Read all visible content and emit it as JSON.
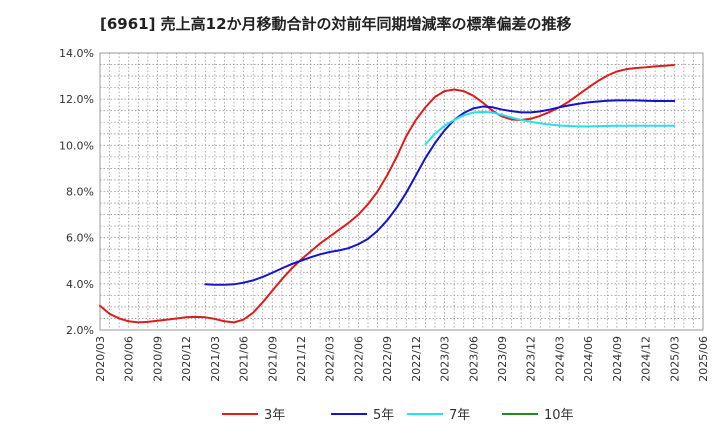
{
  "chart_data": {
    "type": "line",
    "title": "[6961]  売上高12か月移動合計の対前年同期増減率の標準偏差の推移",
    "ylim": [
      2.0,
      14.0
    ],
    "yticks": [
      2.0,
      4.0,
      6.0,
      8.0,
      10.0,
      12.0,
      14.0
    ],
    "ytick_labels": [
      "2.0%",
      "4.0%",
      "6.0%",
      "8.0%",
      "10.0%",
      "12.0%",
      "14.0%"
    ],
    "xlim": [
      "2020/03",
      "2025/06"
    ],
    "xtick_labels": [
      "2020/03",
      "2020/06",
      "2020/09",
      "2020/12",
      "2021/03",
      "2021/06",
      "2021/09",
      "2021/12",
      "2022/03",
      "2022/06",
      "2022/09",
      "2022/12",
      "2023/03",
      "2023/06",
      "2023/09",
      "2023/12",
      "2024/03",
      "2024/06",
      "2024/09",
      "2024/12",
      "2025/03",
      "2025/06"
    ],
    "grid": true,
    "legend_position": "bottom",
    "series": [
      {
        "name": "3年",
        "color": "#dd1c1c",
        "points": [
          [
            "2020/03",
            3.05
          ],
          [
            "2020/04",
            2.7
          ],
          [
            "2020/05",
            2.5
          ],
          [
            "2020/06",
            2.38
          ],
          [
            "2020/07",
            2.33
          ],
          [
            "2020/08",
            2.35
          ],
          [
            "2020/09",
            2.4
          ],
          [
            "2020/10",
            2.45
          ],
          [
            "2020/11",
            2.5
          ],
          [
            "2020/12",
            2.55
          ],
          [
            "2021/01",
            2.57
          ],
          [
            "2021/02",
            2.55
          ],
          [
            "2021/03",
            2.48
          ],
          [
            "2021/04",
            2.38
          ],
          [
            "2021/05",
            2.33
          ],
          [
            "2021/06",
            2.45
          ],
          [
            "2021/07",
            2.75
          ],
          [
            "2021/08",
            3.2
          ],
          [
            "2021/09",
            3.7
          ],
          [
            "2021/10",
            4.2
          ],
          [
            "2021/11",
            4.65
          ],
          [
            "2021/12",
            5.05
          ],
          [
            "2022/01",
            5.4
          ],
          [
            "2022/02",
            5.75
          ],
          [
            "2022/03",
            6.05
          ],
          [
            "2022/04",
            6.35
          ],
          [
            "2022/05",
            6.65
          ],
          [
            "2022/06",
            7.0
          ],
          [
            "2022/07",
            7.45
          ],
          [
            "2022/08",
            8.0
          ],
          [
            "2022/09",
            8.7
          ],
          [
            "2022/10",
            9.5
          ],
          [
            "2022/11",
            10.4
          ],
          [
            "2022/12",
            11.1
          ],
          [
            "2023/01",
            11.65
          ],
          [
            "2023/02",
            12.1
          ],
          [
            "2023/03",
            12.35
          ],
          [
            "2023/04",
            12.42
          ],
          [
            "2023/05",
            12.35
          ],
          [
            "2023/06",
            12.15
          ],
          [
            "2023/07",
            11.85
          ],
          [
            "2023/08",
            11.5
          ],
          [
            "2023/09",
            11.25
          ],
          [
            "2023/10",
            11.12
          ],
          [
            "2023/11",
            11.1
          ],
          [
            "2023/12",
            11.15
          ],
          [
            "2024/01",
            11.28
          ],
          [
            "2024/02",
            11.45
          ],
          [
            "2024/03",
            11.65
          ],
          [
            "2024/04",
            11.9
          ],
          [
            "2024/05",
            12.2
          ],
          [
            "2024/06",
            12.5
          ],
          [
            "2024/07",
            12.78
          ],
          [
            "2024/08",
            13.02
          ],
          [
            "2024/09",
            13.2
          ],
          [
            "2024/10",
            13.3
          ],
          [
            "2024/11",
            13.35
          ],
          [
            "2024/12",
            13.38
          ],
          [
            "2025/01",
            13.42
          ],
          [
            "2025/02",
            13.45
          ],
          [
            "2025/03",
            13.48
          ]
        ]
      },
      {
        "name": "5年",
        "color": "#1414c8",
        "points": [
          [
            "2021/02",
            3.98
          ],
          [
            "2021/03",
            3.96
          ],
          [
            "2021/04",
            3.96
          ],
          [
            "2021/05",
            3.98
          ],
          [
            "2021/06",
            4.05
          ],
          [
            "2021/07",
            4.15
          ],
          [
            "2021/08",
            4.3
          ],
          [
            "2021/09",
            4.48
          ],
          [
            "2021/10",
            4.67
          ],
          [
            "2021/11",
            4.85
          ],
          [
            "2021/12",
            5.0
          ],
          [
            "2022/01",
            5.15
          ],
          [
            "2022/02",
            5.28
          ],
          [
            "2022/03",
            5.38
          ],
          [
            "2022/04",
            5.45
          ],
          [
            "2022/05",
            5.55
          ],
          [
            "2022/06",
            5.72
          ],
          [
            "2022/07",
            5.95
          ],
          [
            "2022/08",
            6.3
          ],
          [
            "2022/09",
            6.75
          ],
          [
            "2022/10",
            7.3
          ],
          [
            "2022/11",
            7.95
          ],
          [
            "2022/12",
            8.7
          ],
          [
            "2023/01",
            9.45
          ],
          [
            "2023/02",
            10.1
          ],
          [
            "2023/03",
            10.65
          ],
          [
            "2023/04",
            11.1
          ],
          [
            "2023/05",
            11.4
          ],
          [
            "2023/06",
            11.6
          ],
          [
            "2023/07",
            11.68
          ],
          [
            "2023/08",
            11.65
          ],
          [
            "2023/09",
            11.55
          ],
          [
            "2023/10",
            11.48
          ],
          [
            "2023/11",
            11.43
          ],
          [
            "2023/12",
            11.43
          ],
          [
            "2024/01",
            11.47
          ],
          [
            "2024/02",
            11.55
          ],
          [
            "2024/03",
            11.65
          ],
          [
            "2024/04",
            11.73
          ],
          [
            "2024/05",
            11.8
          ],
          [
            "2024/06",
            11.86
          ],
          [
            "2024/07",
            11.9
          ],
          [
            "2024/08",
            11.93
          ],
          [
            "2024/09",
            11.95
          ],
          [
            "2024/10",
            11.95
          ],
          [
            "2024/11",
            11.95
          ],
          [
            "2024/12",
            11.93
          ],
          [
            "2025/01",
            11.92
          ],
          [
            "2025/02",
            11.92
          ],
          [
            "2025/03",
            11.92
          ]
        ]
      },
      {
        "name": "7年",
        "color": "#22e2f2",
        "points": [
          [
            "2023/01",
            10.05
          ],
          [
            "2023/02",
            10.5
          ],
          [
            "2023/03",
            10.85
          ],
          [
            "2023/04",
            11.1
          ],
          [
            "2023/05",
            11.3
          ],
          [
            "2023/06",
            11.42
          ],
          [
            "2023/07",
            11.45
          ],
          [
            "2023/08",
            11.42
          ],
          [
            "2023/09",
            11.32
          ],
          [
            "2023/10",
            11.2
          ],
          [
            "2023/11",
            11.1
          ],
          [
            "2023/12",
            11.02
          ],
          [
            "2024/01",
            10.95
          ],
          [
            "2024/02",
            10.9
          ],
          [
            "2024/03",
            10.86
          ],
          [
            "2024/04",
            10.84
          ],
          [
            "2024/05",
            10.82
          ],
          [
            "2024/06",
            10.82
          ],
          [
            "2024/07",
            10.83
          ],
          [
            "2024/08",
            10.84
          ],
          [
            "2024/09",
            10.85
          ],
          [
            "2024/10",
            10.85
          ],
          [
            "2024/11",
            10.85
          ],
          [
            "2024/12",
            10.85
          ],
          [
            "2025/01",
            10.85
          ],
          [
            "2025/02",
            10.85
          ],
          [
            "2025/03",
            10.85
          ]
        ]
      },
      {
        "name": "10年",
        "color": "#228b22",
        "points": []
      }
    ]
  }
}
